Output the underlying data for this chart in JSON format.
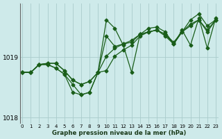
{
  "xlabel": "Graphe pression niveau de la mer (hPa)",
  "background_color": "#ceeaea",
  "line_color": "#1a5e1a",
  "grid_color": "#aacccc",
  "ylim": [
    1017.9,
    1019.9
  ],
  "xlim": [
    -0.3,
    23.3
  ],
  "yticks": [
    1018,
    1019
  ],
  "xticks": [
    0,
    1,
    2,
    3,
    4,
    5,
    6,
    7,
    8,
    9,
    10,
    11,
    12,
    13,
    14,
    15,
    16,
    17,
    18,
    19,
    20,
    21,
    22,
    23
  ],
  "series": [
    [
      1018.75,
      1018.75,
      1018.88,
      1018.88,
      1018.82,
      1018.72,
      1018.55,
      1018.38,
      1018.42,
      1018.75,
      1019.62,
      1019.48,
      1019.2,
      1018.75,
      1019.38,
      1019.48,
      1019.5,
      1019.42,
      1019.22,
      1019.45,
      1019.2,
      1019.65,
      1019.15,
      1019.65
    ],
    [
      1018.75,
      1018.75,
      1018.88,
      1018.88,
      1018.82,
      1018.72,
      1018.42,
      1018.38,
      1018.42,
      1018.75,
      1018.78,
      1019.02,
      1019.12,
      1019.2,
      1019.35,
      1019.42,
      1019.45,
      1019.38,
      1019.22,
      1019.42,
      1019.55,
      1019.62,
      1019.42,
      1019.62
    ],
    [
      1018.75,
      1018.75,
      1018.88,
      1018.9,
      1018.9,
      1018.78,
      1018.62,
      1018.55,
      1018.6,
      1018.75,
      1019.02,
      1019.15,
      1019.22,
      1019.28,
      1019.38,
      1019.42,
      1019.45,
      1019.38,
      1019.25,
      1019.42,
      1019.52,
      1019.62,
      1019.45,
      1019.62
    ],
    [
      1018.75,
      1018.75,
      1018.88,
      1018.9,
      1018.9,
      1018.78,
      1018.62,
      1018.55,
      1018.6,
      1018.75,
      1019.35,
      1019.18,
      1019.22,
      1019.25,
      1019.38,
      1019.42,
      1019.45,
      1019.35,
      1019.22,
      1019.42,
      1019.62,
      1019.72,
      1019.52,
      1019.62
    ]
  ],
  "marker": "D",
  "markersize": 2.5,
  "linewidth": 0.9
}
